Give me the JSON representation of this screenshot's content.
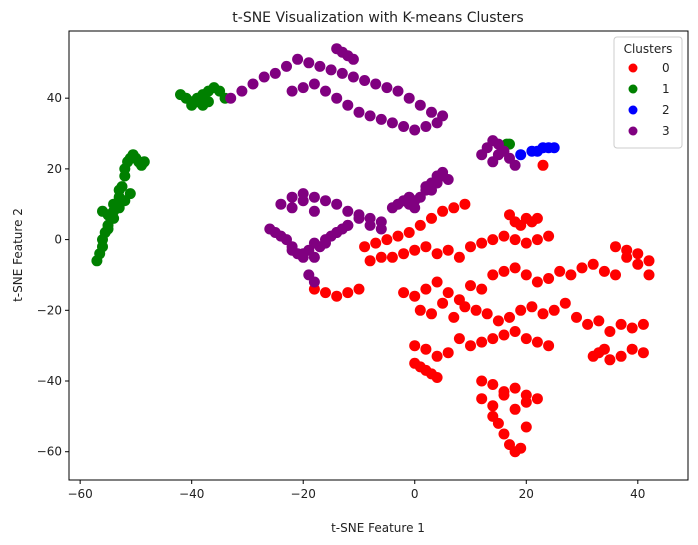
{
  "chart_data": {
    "type": "scatter",
    "title": "t-SNE Visualization with K-means Clusters",
    "xlabel": "t-SNE Feature 1",
    "ylabel": "t-SNE Feature 2",
    "xlim": [
      -62,
      49
    ],
    "ylim": [
      -68,
      59
    ],
    "xticks": [
      -60,
      -40,
      -20,
      0,
      20,
      40
    ],
    "yticks": [
      -60,
      -40,
      -20,
      0,
      20,
      40
    ],
    "grid": false,
    "legend": {
      "title": "Clusters",
      "placement": "top-right"
    },
    "series": [
      {
        "name": "0",
        "color": "#ff0000",
        "x": [
          -18,
          -16,
          -14,
          -12,
          -10,
          -8,
          -6,
          -9,
          -7,
          -5,
          -3,
          -1,
          1,
          3,
          5,
          7,
          9,
          -4,
          -2,
          0,
          2,
          4,
          6,
          8,
          10,
          12,
          14,
          16,
          18,
          20,
          22,
          24,
          -2,
          0,
          2,
          4,
          6,
          8,
          10,
          12,
          14,
          16,
          18,
          20,
          22,
          24,
          26,
          28,
          30,
          32,
          34,
          36,
          38,
          40,
          42,
          36,
          38,
          40,
          42,
          1,
          3,
          5,
          7,
          9,
          11,
          13,
          15,
          17,
          19,
          21,
          23,
          25,
          27,
          29,
          31,
          33,
          35,
          37,
          39,
          41,
          0,
          2,
          4,
          6,
          8,
          10,
          12,
          14,
          16,
          18,
          20,
          22,
          24,
          33,
          35,
          37,
          39,
          41,
          0,
          1,
          2,
          3,
          4,
          12,
          14,
          16,
          18,
          20,
          22,
          32,
          34,
          14,
          15,
          16,
          17,
          18,
          19,
          20,
          12,
          14,
          16,
          18,
          20,
          22,
          17,
          18,
          19,
          20,
          21,
          23
        ],
        "y": [
          -14,
          -15,
          -16,
          -15,
          -14,
          -6,
          -5,
          -2,
          -1,
          0,
          1,
          2,
          4,
          6,
          8,
          9,
          10,
          -5,
          -4,
          -3,
          -2,
          -4,
          -3,
          -5,
          -2,
          -1,
          0,
          1,
          0,
          -1,
          0,
          1,
          -15,
          -16,
          -14,
          -12,
          -15,
          -17,
          -13,
          -14,
          -10,
          -9,
          -8,
          -10,
          -12,
          -11,
          -9,
          -10,
          -8,
          -7,
          -9,
          -10,
          -5,
          -4,
          -6,
          -2,
          -3,
          -7,
          -10,
          -20,
          -21,
          -18,
          -22,
          -19,
          -20,
          -21,
          -23,
          -22,
          -20,
          -19,
          -21,
          -20,
          -18,
          -22,
          -24,
          -23,
          -26,
          -24,
          -25,
          -24,
          -30,
          -31,
          -33,
          -32,
          -28,
          -30,
          -29,
          -28,
          -27,
          -26,
          -28,
          -29,
          -30,
          -32,
          -34,
          -33,
          -31,
          -32,
          -35,
          -36,
          -37,
          -38,
          -39,
          -45,
          -47,
          -44,
          -48,
          -46,
          -45,
          -33,
          -31,
          -50,
          -52,
          -55,
          -58,
          -60,
          -59,
          -53,
          -40,
          -41,
          -43,
          -42,
          -44,
          6,
          7,
          5,
          4,
          6,
          5,
          21
        ]
      },
      {
        "name": "1",
        "color": "#008000",
        "x": [
          -57,
          -56.5,
          -56,
          -56,
          -55.5,
          -55,
          -55,
          -54.5,
          -54,
          -54,
          -53.5,
          -53,
          -53,
          -52.5,
          -52,
          -52,
          -51.5,
          -51,
          -50.5,
          -50,
          -49.5,
          -49,
          -48.5,
          -56,
          -55,
          -54,
          -53,
          -52,
          -51,
          -42,
          -41,
          -40,
          -39,
          -38,
          -37,
          -36,
          -35,
          -34,
          -40,
          -39,
          -38,
          -37,
          16.5,
          17
        ],
        "y": [
          -6,
          -4,
          -2,
          0,
          2,
          3,
          4,
          6,
          8,
          10,
          9,
          12,
          14,
          15,
          18,
          20,
          22,
          23,
          24,
          23,
          22,
          21,
          22,
          8,
          7,
          6,
          9,
          11,
          13,
          41,
          40,
          39,
          40,
          41,
          42,
          43,
          42,
          40,
          38,
          39,
          38,
          39,
          27,
          27
        ]
      },
      {
        "name": "2",
        "color": "#0000ff",
        "x": [
          19,
          21,
          22,
          23,
          24,
          25
        ],
        "y": [
          24,
          25,
          25,
          26,
          26,
          26
        ]
      },
      {
        "name": "3",
        "color": "#800080",
        "x": [
          -33,
          -31,
          -29,
          -27,
          -25,
          -23,
          -21,
          -19,
          -17,
          -15,
          -13,
          -11,
          -9,
          -7,
          -5,
          -3,
          -1,
          1,
          3,
          5,
          -14,
          -13,
          -12,
          -11,
          -22,
          -20,
          -18,
          -16,
          -14,
          -12,
          -10,
          -8,
          -6,
          -4,
          -2,
          0,
          2,
          4,
          -26,
          -25,
          -24,
          -23,
          -22,
          -21,
          -20,
          -19,
          -18,
          -16,
          -14,
          -12,
          -10,
          -8,
          -6,
          -22,
          -20,
          -18,
          -16,
          -14,
          -12,
          -10,
          -8,
          -6,
          -24,
          -22,
          -20,
          -18,
          -22,
          -20,
          -18,
          -17,
          -16,
          -15,
          -14,
          -13,
          -12,
          -19,
          -18,
          -1,
          0,
          1,
          2,
          3,
          4,
          5,
          6,
          2,
          3,
          4,
          5,
          -4,
          -3,
          -2,
          -1,
          0,
          12,
          13,
          14,
          15,
          16,
          17,
          18,
          14,
          15
        ],
        "y": [
          40,
          42,
          44,
          46,
          47,
          49,
          51,
          50,
          49,
          48,
          47,
          46,
          45,
          44,
          43,
          42,
          40,
          38,
          36,
          35,
          54,
          53,
          52,
          51,
          42,
          43,
          44,
          42,
          40,
          38,
          36,
          35,
          34,
          33,
          32,
          31,
          32,
          33,
          3,
          2,
          1,
          0,
          -2,
          -4,
          -5,
          -3,
          -1,
          0,
          2,
          4,
          6,
          4,
          3,
          12,
          13,
          12,
          11,
          10,
          8,
          7,
          6,
          5,
          10,
          9,
          11,
          8,
          -3,
          -4,
          -5,
          -2,
          -1,
          1,
          2,
          3,
          4,
          -10,
          -12,
          10,
          11,
          12,
          14,
          16,
          18,
          19,
          17,
          15,
          14,
          16,
          18,
          9,
          10,
          11,
          12,
          9,
          24,
          26,
          28,
          27,
          25,
          23,
          21,
          22,
          24
        ]
      }
    ]
  }
}
